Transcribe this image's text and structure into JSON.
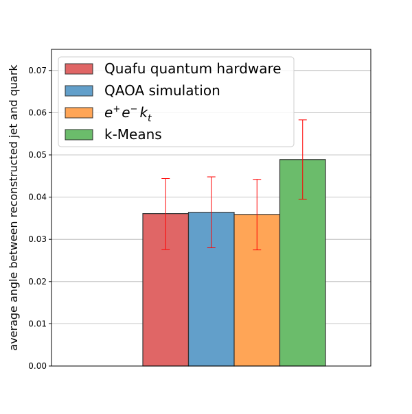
{
  "chart_data": {
    "type": "bar",
    "title": "",
    "xlabel": "",
    "ylabel": "average angle between reconstructed jet and quark",
    "ylim": [
      0,
      0.075
    ],
    "yticks": [
      0.0,
      0.01,
      0.02,
      0.03,
      0.04,
      0.05,
      0.06,
      0.07
    ],
    "ytick_labels": [
      "0.00",
      "0.01",
      "0.02",
      "0.03",
      "0.04",
      "0.05",
      "0.06",
      "0.07"
    ],
    "grid": "horizontal",
    "legend_position": "top-left",
    "series": [
      {
        "name": "Quafu quantum hardware",
        "value": 0.0361,
        "error_low": 0.0276,
        "error_high": 0.0444,
        "color": "#e06666"
      },
      {
        "name": "QAOA simulation",
        "value": 0.0364,
        "error_low": 0.028,
        "error_high": 0.0448,
        "color": "#629fca"
      },
      {
        "name": "e+e- kt",
        "value": 0.0359,
        "error_low": 0.0275,
        "error_high": 0.0442,
        "color": "#ffa556"
      },
      {
        "name": "k-Means",
        "value": 0.0489,
        "error_low": 0.0395,
        "error_high": 0.0583,
        "color": "#6bbc6b"
      }
    ],
    "error_bar_color": "#ff0000"
  }
}
